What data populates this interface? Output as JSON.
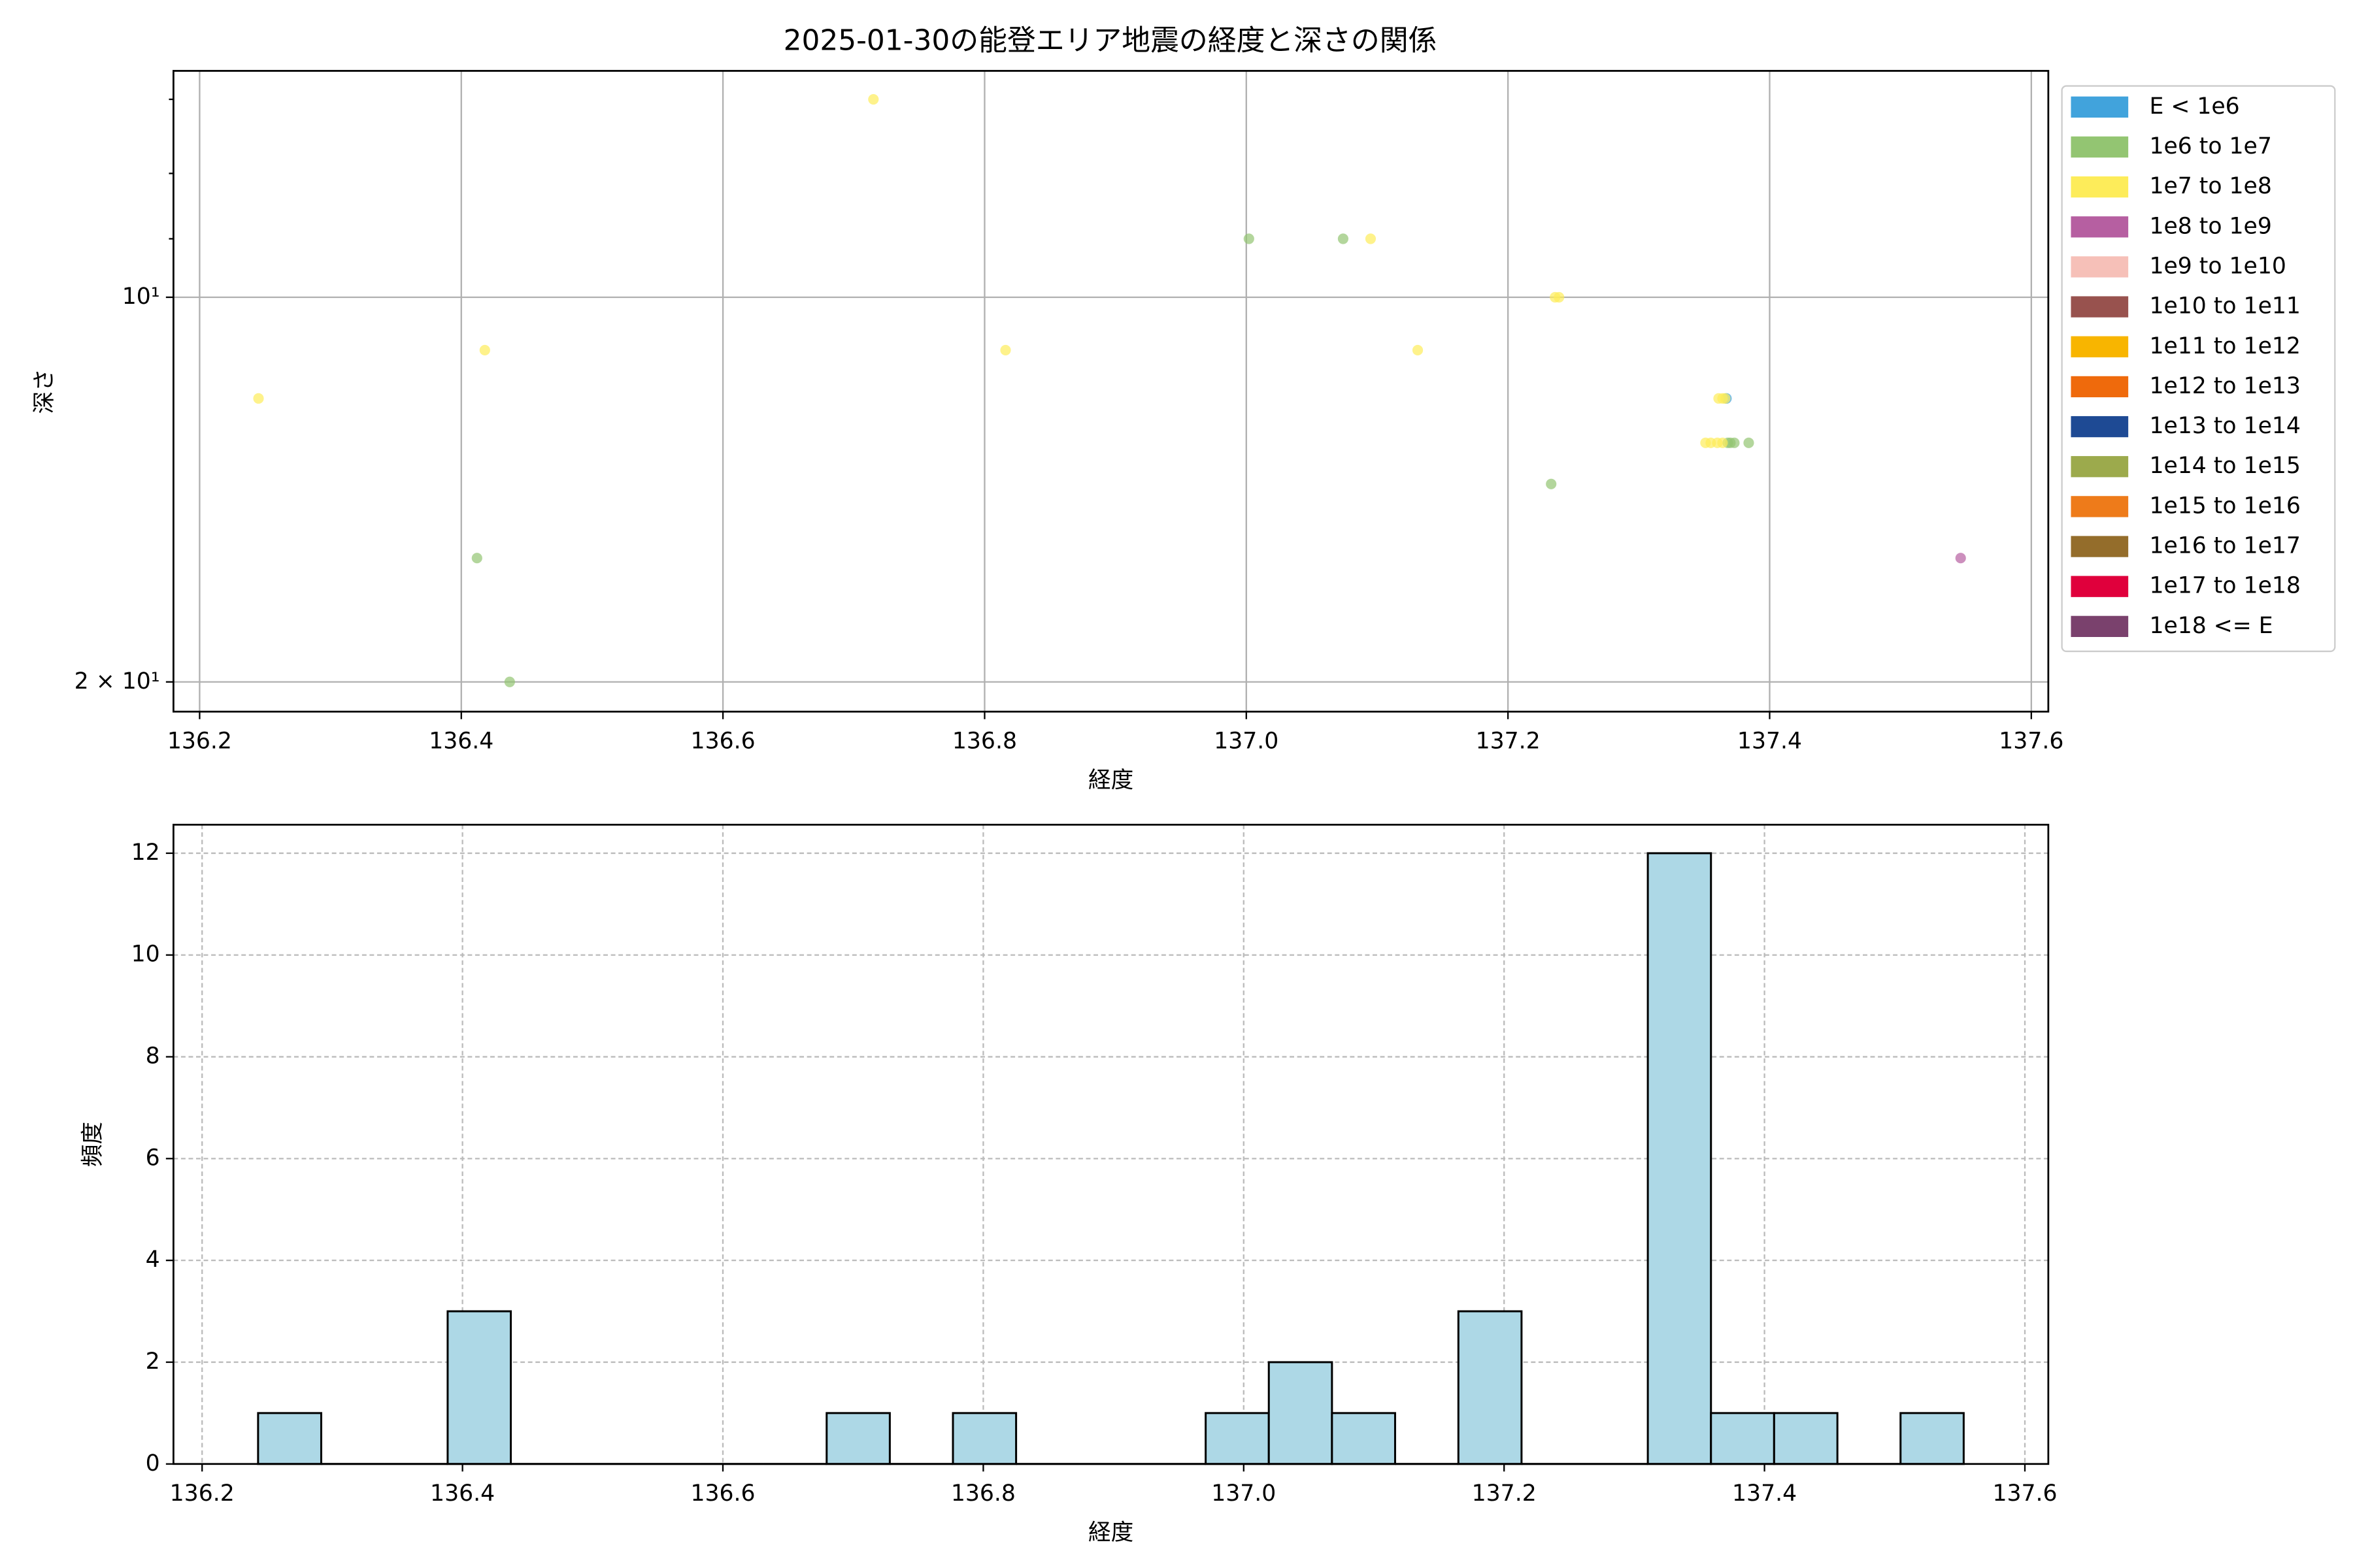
{
  "chart_data": [
    {
      "type": "scatter",
      "title": "2025-01-30の能登エリア地震の経度と深さの関係",
      "xlabel": "経度",
      "ylabel": "深さ",
      "yscale": "log",
      "y_inverted": true,
      "grid": true,
      "legend": "outside-right",
      "xlim": [
        136.18,
        137.613
      ],
      "ylim": [
        6.65,
        21.1
      ],
      "xticks": [
        136.2,
        136.4,
        136.6,
        136.8,
        {
          "value": 137,
          "label": "137.0"
        },
        137.2,
        137.4,
        137.6
      ],
      "yticks": [
        {
          "value": 10,
          "label": "10¹"
        },
        {
          "value": 20,
          "label": "2 × 10¹"
        }
      ],
      "yminor_ticks": [
        7,
        8,
        9
      ],
      "series": [
        {
          "name": "E < 1e6",
          "color": "#41a3dc",
          "x": [
            137.367
          ],
          "values": [
            12
          ]
        },
        {
          "name": "1e6 to 1e7",
          "color": "#93c572",
          "x": [
            136.412,
            136.437,
            137.002,
            137.074,
            137.233,
            137.368,
            137.373,
            137.384,
            137.37
          ],
          "values": [
            16,
            20,
            9,
            9,
            14,
            13,
            13,
            13,
            13
          ]
        },
        {
          "name": "1e7 to 1e8",
          "color": "#fdec5a",
          "x": [
            136.245,
            136.418,
            136.715,
            136.816,
            137.095,
            137.131,
            137.239,
            137.361,
            137.364,
            137.351,
            137.355,
            137.364,
            137.236,
            137.36,
            137.366
          ],
          "values": [
            12,
            11,
            7,
            11,
            9,
            11,
            10,
            12,
            12,
            13,
            13,
            13,
            10,
            13,
            12
          ]
        },
        {
          "name": "1e8 to 1e9",
          "color": "#b65fa1",
          "x": [
            137.546
          ],
          "values": [
            16
          ]
        },
        {
          "name": "1e9 to 1e10",
          "color": "#f6c0b8",
          "x": [],
          "values": []
        },
        {
          "name": "1e10 to 1e11",
          "color": "#98524e",
          "x": [],
          "values": []
        },
        {
          "name": "1e11 to 1e12",
          "color": "#f8b500",
          "x": [],
          "values": []
        },
        {
          "name": "1e12 to 1e13",
          "color": "#ef6a0c",
          "x": [],
          "values": []
        },
        {
          "name": "1e13 to 1e14",
          "color": "#1e4a94",
          "x": [],
          "values": []
        },
        {
          "name": "1e14 to 1e15",
          "color": "#9caa4c",
          "x": [],
          "values": []
        },
        {
          "name": "1e15 to 1e16",
          "color": "#ee7b1a",
          "x": [],
          "values": []
        },
        {
          "name": "1e16 to 1e17",
          "color": "#946d2b",
          "x": [],
          "values": []
        },
        {
          "name": "1e17 to 1e18",
          "color": "#e0003c",
          "x": [],
          "values": []
        },
        {
          "name": "1e18 <= E",
          "color": "#7a416d",
          "x": [],
          "values": []
        }
      ]
    },
    {
      "type": "histogram",
      "xlabel": "経度",
      "ylabel": "頻度",
      "grid": true,
      "color": "#add8e6",
      "edgecolor": "#000000",
      "xlim": [
        136.178,
        137.618
      ],
      "ylim": [
        0,
        12.56
      ],
      "xticks": [
        136.2,
        136.4,
        136.6,
        136.8,
        {
          "value": 137,
          "label": "137.0"
        },
        137.2,
        137.4,
        137.6
      ],
      "yticks": [
        0,
        2,
        4,
        6,
        8,
        10,
        12
      ],
      "bins": [
        136.243,
        136.2915,
        136.34,
        136.3886,
        136.4371,
        136.4856,
        136.5341,
        136.5826,
        136.6312,
        136.6797,
        136.7282,
        136.7767,
        136.8252,
        136.8737,
        136.9223,
        136.9708,
        137.0193,
        137.0678,
        137.1163,
        137.1649,
        137.2134,
        137.2619,
        137.3104,
        137.3589,
        137.4074,
        137.456,
        137.5045,
        137.553
      ],
      "values": [
        1,
        0,
        0,
        3,
        0,
        0,
        0,
        0,
        0,
        1,
        0,
        1,
        0,
        0,
        0,
        1,
        2,
        1,
        0,
        3,
        0,
        0,
        12,
        1,
        1,
        0,
        1
      ]
    }
  ]
}
